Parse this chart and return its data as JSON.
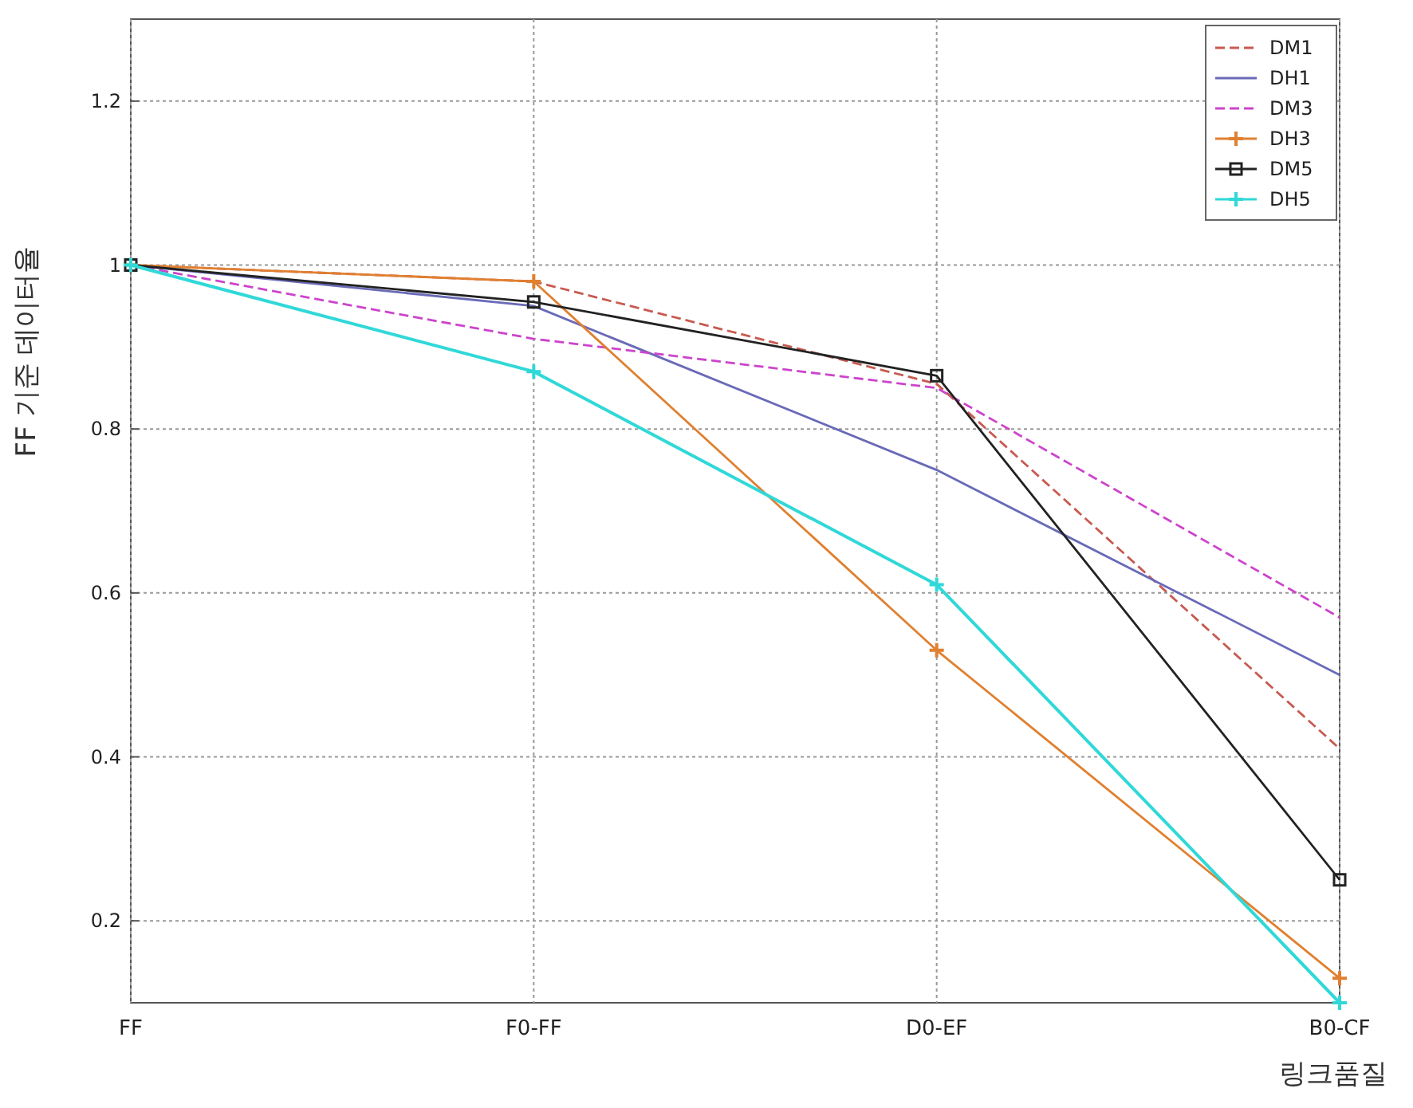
{
  "chart_data": {
    "type": "line",
    "xlabel": "링크품질",
    "ylabel": "FF 기준 데이터율",
    "categories": [
      "FF",
      "F0-FF",
      "D0-EF",
      "B0-CF"
    ],
    "ylim": [
      0.1,
      1.3
    ],
    "yticks": [
      0.2,
      0.4,
      0.6,
      0.8,
      1,
      1.2
    ],
    "grid": true,
    "legend": "top right",
    "series": [
      {
        "name": "DM1",
        "color": "#c85a50",
        "line_style": "dashed",
        "marker": "none",
        "values": [
          1,
          0.98,
          0.855,
          0.41
        ]
      },
      {
        "name": "DH1",
        "color": "#6a6ab8",
        "line_style": "solid",
        "marker": "none",
        "values": [
          1,
          0.95,
          0.75,
          0.5
        ]
      },
      {
        "name": "DM3",
        "color": "#cc44cc",
        "line_style": "dashed",
        "marker": "none",
        "values": [
          1,
          0.91,
          0.85,
          0.57
        ]
      },
      {
        "name": "DH3",
        "color": "#e08030",
        "line_style": "solid",
        "marker": "cross",
        "values": [
          1,
          0.98,
          0.53,
          0.13
        ]
      },
      {
        "name": "DM5",
        "color": "#222222",
        "line_style": "solid",
        "marker": "square",
        "values": [
          1,
          0.955,
          0.865,
          0.25
        ]
      },
      {
        "name": "DH5",
        "color": "#30d8d8",
        "line_style": "solid",
        "marker": "cross",
        "values": [
          1,
          0.87,
          0.61,
          0.1
        ]
      }
    ]
  }
}
